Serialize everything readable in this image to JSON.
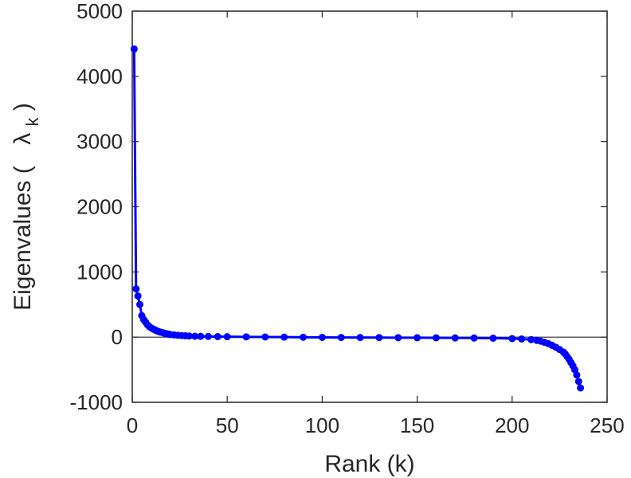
{
  "chart_data": {
    "type": "scatter",
    "title": "",
    "xlabel": "Rank (k)",
    "ylabel_main": "Eigenvalues (",
    "ylabel_symbol": "λ",
    "ylabel_subscript": "k",
    "ylabel_close": ")",
    "xlim": [
      0,
      250
    ],
    "ylim": [
      -1000,
      5000
    ],
    "xticks": [
      0,
      50,
      100,
      150,
      200,
      250
    ],
    "yticks": [
      -1000,
      0,
      1000,
      2000,
      3000,
      4000,
      5000
    ],
    "reference_line_y": 0,
    "grid": false,
    "marker_color": "#0000ff",
    "series": [
      {
        "x": [
          1,
          2,
          3,
          4,
          5,
          6,
          7,
          8,
          9,
          10,
          11,
          12,
          13,
          14,
          15,
          16,
          17,
          18,
          19,
          20,
          22,
          24,
          26,
          28,
          30,
          33,
          36,
          40,
          45,
          50,
          60,
          70,
          80,
          90,
          100,
          110,
          120,
          130,
          140,
          150,
          160,
          170,
          180,
          190,
          200,
          205,
          210,
          213,
          215,
          217,
          219,
          221,
          223,
          225,
          227,
          228,
          229,
          230,
          231,
          232,
          233,
          234,
          235,
          236
        ],
        "y": [
          4420,
          740,
          630,
          500,
          330,
          270,
          230,
          190,
          160,
          140,
          125,
          110,
          95,
          85,
          75,
          68,
          60,
          52,
          46,
          40,
          34,
          28,
          24,
          20,
          17,
          14,
          12,
          10,
          8,
          6,
          4,
          2,
          0,
          -2,
          -4,
          -5,
          -6,
          -7,
          -8,
          -9,
          -10,
          -12,
          -14,
          -17,
          -22,
          -28,
          -38,
          -50,
          -62,
          -80,
          -100,
          -125,
          -155,
          -190,
          -230,
          -260,
          -300,
          -340,
          -390,
          -440,
          -500,
          -580,
          -680,
          -780
        ]
      }
    ]
  }
}
